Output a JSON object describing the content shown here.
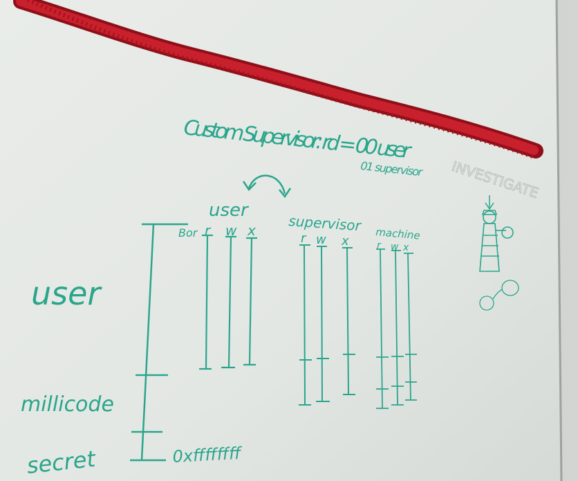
{
  "scene": {
    "ink_color": "#2aa58c",
    "garland_color": "#b3141f",
    "board_color": "#e4e8e4",
    "title": {
      "line1": "Custom Supervisor: rd = 00 user",
      "line2": "01 supervisor"
    },
    "column_groups": {
      "user": {
        "label": "user",
        "columns": [
          "r",
          "w",
          "x"
        ],
        "prefix": "Bor"
      },
      "supervisor": {
        "label": "supervisor",
        "columns": [
          "r",
          "w",
          "x"
        ]
      },
      "machine": {
        "label": "machine",
        "columns": [
          "r",
          "w",
          "x"
        ]
      }
    },
    "regions": {
      "user": "user",
      "millicode": "millicode",
      "secret": "secret"
    },
    "address_label": "0xffffffff",
    "investigate_label": "INVESTIGATE",
    "icons": [
      "garland-icon",
      "swap-arrow-icon",
      "investigator-figure-icon",
      "magnifying-glass-icon",
      "speech-bubble-icon"
    ]
  }
}
